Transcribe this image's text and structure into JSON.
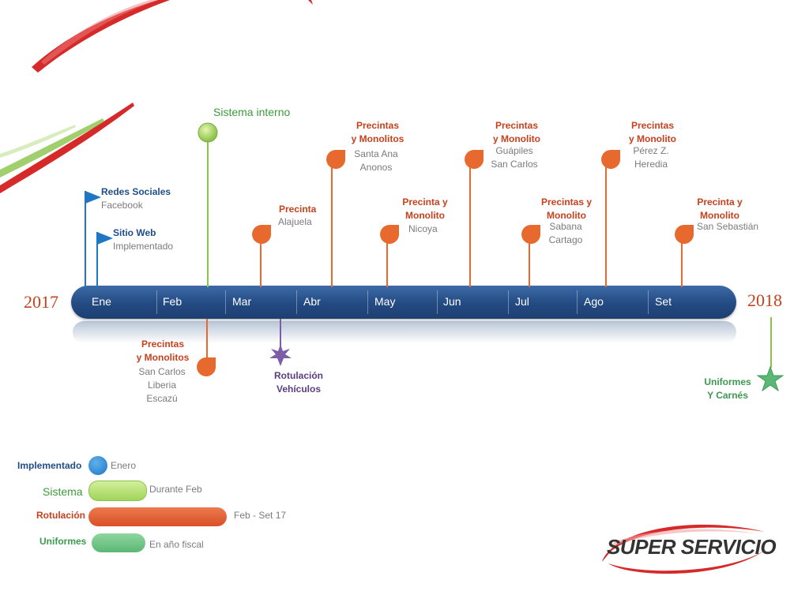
{
  "years": {
    "start": "2017",
    "end": "2018"
  },
  "months": [
    "Ene",
    "Feb",
    "Mar",
    "Abr",
    "May",
    "Jun",
    "Jul",
    "Ago",
    "Set"
  ],
  "above": {
    "redes": {
      "title": "Redes Sociales",
      "detail": "Facebook"
    },
    "sitio": {
      "title": "Sitio Web",
      "detail": "Implementado"
    },
    "sistema": {
      "title": "Sistema interno"
    },
    "precinta_alajuela": {
      "title": "Precinta",
      "detail": "Alajuela"
    },
    "santa_ana": {
      "title1": "Precintas",
      "title2": "y Monolitos",
      "detail1": "Santa Ana",
      "detail2": "Anonos"
    },
    "nicoya": {
      "title1": "Precinta y",
      "title2": "Monolito",
      "detail": "Nicoya"
    },
    "guapiles": {
      "title1": "Precintas",
      "title2": "y Monolito",
      "detail1": "Guápiles",
      "detail2": "San Carlos"
    },
    "sabana": {
      "title1": "Precintas y",
      "title2": "Monolito",
      "detail1": "Sabana",
      "detail2": "Cartago"
    },
    "perez": {
      "title1": "Precintas",
      "title2": "y Monolito",
      "detail1": "Pérez Z.",
      "detail2": "Heredia"
    },
    "san_sebastian": {
      "title1": "Precinta y",
      "title2": "Monolito",
      "detail": "San Sebastián"
    }
  },
  "below": {
    "san_carlos": {
      "title1": "Precintas",
      "title2": "y Monolitos",
      "detail1": "San Carlos",
      "detail2": "Liberia",
      "detail3": "Escazú"
    },
    "rotulacion": {
      "title1": "Rotulación",
      "title2": "Vehículos"
    },
    "uniformes": {
      "title1": "Uniformes",
      "title2": "Y Carnés"
    }
  },
  "legend": [
    {
      "label": "Implementado",
      "desc": "Enero",
      "color": "#1f77c4"
    },
    {
      "label": "Sistema",
      "desc": "Durante Feb",
      "color": "#9fd45a"
    },
    {
      "label": "Rotulación",
      "desc": "Feb - Set 17",
      "color": "#d94f26"
    },
    {
      "label": "Uniformes",
      "desc": "En año fiscal",
      "color": "#5bb774"
    }
  ],
  "brand": {
    "logo_text": "SUPER SERVICIO"
  },
  "colors": {
    "bar": "#234a82",
    "red": "#c6411e",
    "orange_pin": "#e8692d",
    "green": "#8bc34a",
    "purple": "#7b5ea7",
    "star": "#5bb774"
  }
}
